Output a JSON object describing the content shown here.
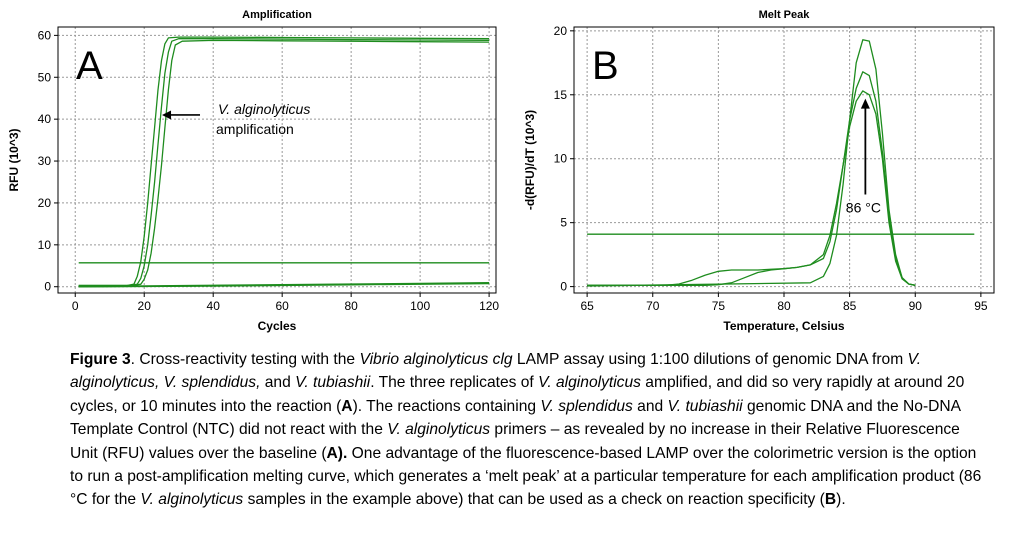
{
  "colors": {
    "curve": "#1e8c1e",
    "grid": "#999999",
    "text": "#000000"
  },
  "chart_data": [
    {
      "type": "line",
      "panel_letter": "A",
      "title": "Amplification",
      "xlabel": "Cycles",
      "ylabel": "RFU (10^3)",
      "xlim": [
        -5,
        122
      ],
      "ylim": [
        -1.5,
        62
      ],
      "xticks": [
        0,
        20,
        40,
        60,
        80,
        100,
        120
      ],
      "yticks": [
        0,
        10,
        20,
        30,
        40,
        50,
        60
      ],
      "grid": true,
      "series": [
        {
          "x": [
            1,
            15,
            17,
            18,
            19,
            20,
            21,
            22,
            23,
            24,
            25,
            26,
            27,
            30,
            40,
            60,
            80,
            100,
            120
          ],
          "y": [
            0.3,
            0.3,
            0.6,
            2.5,
            6,
            12,
            20,
            29,
            38,
            47,
            54,
            58,
            59.4,
            59.6,
            59.6,
            59.5,
            59.4,
            59.3,
            59.2
          ]
        },
        {
          "x": [
            1,
            16,
            18,
            19,
            20,
            21,
            22,
            23,
            24,
            25,
            26,
            27,
            28,
            30,
            40,
            60,
            80,
            100,
            120
          ],
          "y": [
            0.3,
            0.3,
            0.6,
            2,
            5,
            10,
            17,
            25,
            34,
            43,
            51,
            56,
            58.6,
            59.2,
            59.2,
            59.1,
            59,
            58.9,
            58.8
          ]
        },
        {
          "x": [
            1,
            17,
            19,
            20,
            21,
            22,
            23,
            24,
            25,
            26,
            27,
            28,
            29,
            31,
            40,
            60,
            80,
            100,
            120
          ],
          "y": [
            0.3,
            0.3,
            0.6,
            1.8,
            4,
            8,
            14,
            21,
            29,
            38,
            47,
            54,
            57.7,
            58.6,
            58.8,
            58.7,
            58.6,
            58.5,
            58.4
          ]
        },
        {
          "x": [
            1,
            120
          ],
          "y": [
            5.7,
            5.7
          ]
        },
        {
          "x": [
            1,
            20,
            40,
            60,
            80,
            100,
            120
          ],
          "y": [
            0.1,
            0.2,
            0.35,
            0.5,
            0.65,
            0.8,
            0.95
          ]
        },
        {
          "x": [
            1,
            20,
            40,
            60,
            80,
            100,
            120
          ],
          "y": [
            0,
            0.1,
            0.25,
            0.4,
            0.55,
            0.7,
            0.85
          ]
        },
        {
          "x": [
            1,
            20,
            40,
            60,
            80,
            100,
            120
          ],
          "y": [
            -0.05,
            0.05,
            0.15,
            0.3,
            0.45,
            0.6,
            0.75
          ]
        }
      ],
      "annotation": {
        "line1": "V. alginolyticus",
        "line2": "amplification",
        "arrow_to": [
          24,
          41
        ]
      }
    },
    {
      "type": "line",
      "panel_letter": "B",
      "title": "Melt Peak",
      "xlabel": "Temperature, Celsius",
      "ylabel": "-d(RFU)/dT (10^3)",
      "xlim": [
        64,
        96
      ],
      "ylim": [
        -0.5,
        20.3
      ],
      "xticks": [
        65,
        70,
        75,
        80,
        85,
        90,
        95
      ],
      "yticks": [
        0,
        5,
        10,
        15,
        20
      ],
      "grid": true,
      "series": [
        {
          "x": [
            65,
            82,
            83,
            83.5,
            84,
            84.5,
            85,
            85.5,
            86,
            86.5,
            87,
            87.5,
            88,
            88.5,
            89,
            89.5,
            90
          ],
          "y": [
            0.05,
            0.3,
            0.8,
            1.8,
            4,
            8,
            13,
            17.5,
            19.3,
            19.2,
            17,
            12,
            6,
            2.5,
            0.7,
            0.2,
            0.1
          ]
        },
        {
          "x": [
            65,
            71,
            72,
            73,
            74,
            75,
            76,
            77,
            78,
            79,
            80,
            81,
            82,
            83,
            83.5,
            84,
            84.5,
            85,
            85.5,
            86,
            86.5,
            87,
            87.5,
            88,
            88.5,
            89,
            89.5,
            90
          ],
          "y": [
            0.1,
            0.1,
            0.2,
            0.5,
            0.9,
            1.2,
            1.3,
            1.3,
            1.3,
            1.35,
            1.4,
            1.5,
            1.7,
            2.2,
            3.5,
            6,
            9.5,
            13,
            15.5,
            16.8,
            16.5,
            14.5,
            10.5,
            5.5,
            2.2,
            0.7,
            0.2,
            0.1
          ]
        },
        {
          "x": [
            65,
            74,
            75,
            76,
            77,
            78,
            79,
            80,
            81,
            82,
            83,
            83.5,
            84,
            84.5,
            85,
            85.5,
            86,
            86.5,
            87,
            87.5,
            88,
            88.5,
            89,
            89.5,
            90
          ],
          "y": [
            0.1,
            0.1,
            0.15,
            0.3,
            0.7,
            1.1,
            1.3,
            1.4,
            1.5,
            1.7,
            2.5,
            4,
            6.5,
            9.5,
            12.5,
            14.5,
            15.3,
            15,
            13.5,
            10,
            5,
            2,
            0.6,
            0.2,
            0.1
          ]
        },
        {
          "x": [
            65,
            94.5
          ],
          "y": [
            4.1,
            4.1
          ]
        }
      ],
      "annotation": {
        "label": "86 °C",
        "arrow_from": [
          86.2,
          7.2
        ],
        "arrow_to": [
          86.2,
          14.7
        ]
      }
    }
  ],
  "caption": {
    "fig_label": "Figure 3",
    "t1": ". Cross-reactivity testing with the ",
    "i1": "Vibrio alginolyticus clg",
    "t2": " LAMP assay using 1:100 dilutions of genomic DNA from ",
    "i2": "V. alginolyticus, V. splendidus,",
    "t3": " and ",
    "i3": "V. tubiashii",
    "t4": ". The three replicates of ",
    "i4": "V. alginolyticus",
    "t5": " amplified, and did so very rapidly at around 20 cycles, or 10 minutes into the reaction (",
    "b1": "A",
    "t6": "). The reactions containing ",
    "i5": "V. splendidus",
    "t7": " and ",
    "i6": "V. tubiashii",
    "t8": " genomic DNA and the No-DNA Template Control (NTC) did not react with the ",
    "i7": "V. alginolyticus",
    "t9": " primers – as revealed by no increase in their Relative Fluorescence Unit (RFU) values over the baseline (",
    "b2": "A",
    "b3": ").",
    "t10": " One advantage of the fluorescence-based LAMP over the colorimetric version is the option to run a post-amplification melting curve, which generates a ‘melt peak’ at a particular temperature for each amplification product (86 °C for the ",
    "i8": "V. alginolyticus",
    "t11": " samples in the example above) that can be used as a check on reaction specificity (",
    "b4": "B",
    "t12": ")."
  }
}
